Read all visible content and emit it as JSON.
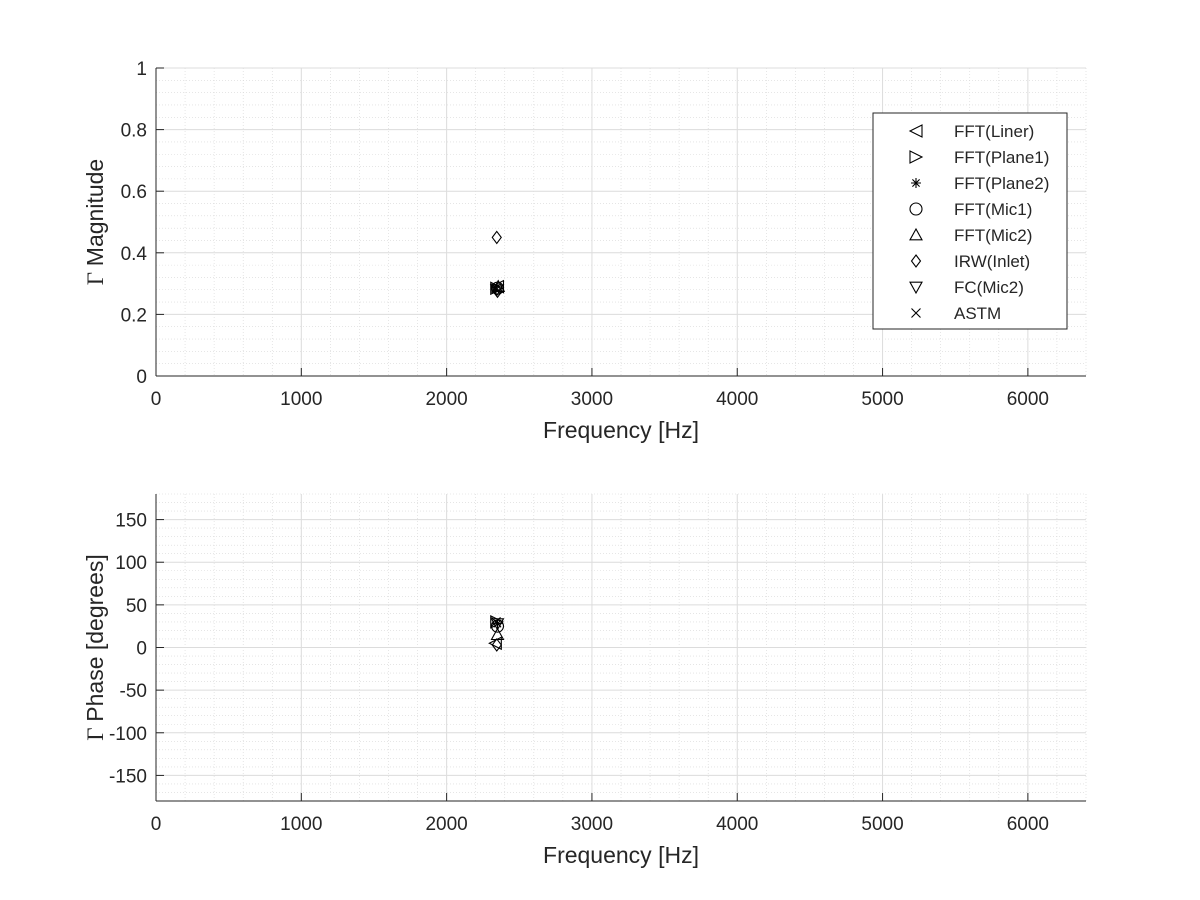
{
  "chart_data": [
    {
      "type": "scatter",
      "title": "",
      "xlabel": "Frequency [Hz]",
      "ylabel_symbol": "Γ",
      "ylabel_text": "Magnitude",
      "xlim": [
        0,
        6400
      ],
      "ylim": [
        0,
        1
      ],
      "xticks": [
        0,
        1000,
        2000,
        3000,
        4000,
        5000,
        6000
      ],
      "yticks": [
        0,
        0.2,
        0.4,
        0.6,
        0.8,
        1
      ],
      "grid": true,
      "minor_grid": true,
      "legend_position": "top-right",
      "series": [
        {
          "name": "FFT(Liner)",
          "marker": "triangle-left",
          "x": [
            2350
          ],
          "y": [
            0.29
          ]
        },
        {
          "name": "FFT(Plane1)",
          "marker": "triangle-right",
          "x": [
            2345
          ],
          "y": [
            0.285
          ]
        },
        {
          "name": "FFT(Plane2)",
          "marker": "asterisk",
          "x": [
            2340
          ],
          "y": [
            0.28
          ]
        },
        {
          "name": "FFT(Mic1)",
          "marker": "circle",
          "x": [
            2350
          ],
          "y": [
            0.285
          ]
        },
        {
          "name": "FFT(Mic2)",
          "marker": "triangle-up",
          "x": [
            2355
          ],
          "y": [
            0.29
          ]
        },
        {
          "name": "IRW(Inlet)",
          "marker": "diamond",
          "x": [
            2345,
            2350
          ],
          "y": [
            0.45,
            0.275
          ]
        },
        {
          "name": "FC(Mic2)",
          "marker": "triangle-down",
          "x": [
            2345
          ],
          "y": [
            0.28
          ]
        },
        {
          "name": "ASTM",
          "marker": "x",
          "x": [
            2340
          ],
          "y": [
            0.285
          ]
        }
      ]
    },
    {
      "type": "scatter",
      "title": "",
      "xlabel": "Frequency [Hz]",
      "ylabel_symbol": "Γ",
      "ylabel_text": "Phase [degrees]",
      "xlim": [
        0,
        6400
      ],
      "ylim": [
        -180,
        180
      ],
      "xticks": [
        0,
        1000,
        2000,
        3000,
        4000,
        5000,
        6000
      ],
      "yticks": [
        -150,
        -100,
        -50,
        0,
        50,
        100,
        150
      ],
      "grid": true,
      "minor_grid": true,
      "series": [
        {
          "name": "FFT(Liner)",
          "marker": "triangle-left",
          "x": [
            2335
          ],
          "y": [
            5
          ]
        },
        {
          "name": "FFT(Plane1)",
          "marker": "triangle-right",
          "x": [
            2345
          ],
          "y": [
            30
          ]
        },
        {
          "name": "FFT(Plane2)",
          "marker": "asterisk",
          "x": [
            2350
          ],
          "y": [
            28
          ]
        },
        {
          "name": "FFT(Mic1)",
          "marker": "circle",
          "x": [
            2350
          ],
          "y": [
            25
          ]
        },
        {
          "name": "FFT(Mic2)",
          "marker": "triangle-up",
          "x": [
            2350
          ],
          "y": [
            15
          ]
        },
        {
          "name": "IRW(Inlet)",
          "marker": "diamond",
          "x": [
            2345
          ],
          "y": [
            3
          ]
        },
        {
          "name": "FC(Mic2)",
          "marker": "triangle-down",
          "x": [
            2350
          ],
          "y": [
            28
          ]
        },
        {
          "name": "ASTM",
          "marker": "x",
          "x": [
            2340
          ],
          "y": [
            30
          ]
        }
      ]
    }
  ]
}
